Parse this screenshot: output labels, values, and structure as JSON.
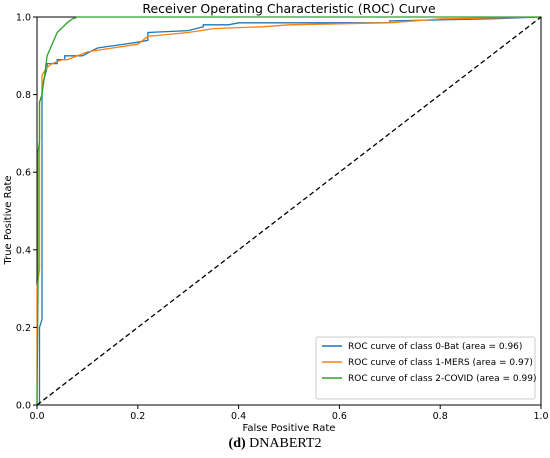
{
  "chart_data": {
    "type": "line",
    "title": "Receiver Operating Characteristic (ROC) Curve",
    "xlabel": "False Positive Rate",
    "ylabel": "True Positive Rate",
    "xlim": [
      0.0,
      1.0
    ],
    "ylim": [
      0.0,
      1.0
    ],
    "xticks": [
      "0.0",
      "0.2",
      "0.4",
      "0.6",
      "0.8",
      "1.0"
    ],
    "yticks": [
      "0.0",
      "0.2",
      "0.4",
      "0.6",
      "0.8",
      "1.0"
    ],
    "grid": false,
    "legend_position": "lower-right",
    "series": [
      {
        "name": "ROC curve of class 0-Bat (area = 0.96)",
        "color": "#1f77b4",
        "x": [
          0.0,
          0.005,
          0.005,
          0.01,
          0.01,
          0.02,
          0.02,
          0.04,
          0.04,
          0.055,
          0.055,
          0.09,
          0.12,
          0.2,
          0.22,
          0.22,
          0.3,
          0.33,
          0.33,
          0.38,
          0.4,
          0.7,
          0.7,
          0.9,
          1.0
        ],
        "y": [
          0.0,
          0.0,
          0.2,
          0.22,
          0.82,
          0.87,
          0.88,
          0.88,
          0.89,
          0.89,
          0.9,
          0.9,
          0.92,
          0.935,
          0.94,
          0.96,
          0.965,
          0.975,
          0.98,
          0.98,
          0.985,
          0.985,
          0.99,
          0.995,
          1.0
        ]
      },
      {
        "name": "ROC curve of class 1-MERS (area = 0.97)",
        "color": "#ff7f0e",
        "x": [
          0.0,
          0.0,
          0.005,
          0.005,
          0.01,
          0.01,
          0.02,
          0.03,
          0.05,
          0.06,
          0.1,
          0.15,
          0.2,
          0.22,
          0.3,
          0.35,
          0.45,
          0.5,
          0.7,
          0.8,
          1.0
        ],
        "y": [
          0.0,
          0.3,
          0.35,
          0.78,
          0.8,
          0.85,
          0.87,
          0.88,
          0.89,
          0.89,
          0.91,
          0.92,
          0.93,
          0.95,
          0.96,
          0.97,
          0.975,
          0.98,
          0.985,
          0.995,
          1.0
        ]
      },
      {
        "name": "ROC curve of class 2-COVID (area = 0.99)",
        "color": "#2ca02c",
        "x": [
          0.0,
          0.002,
          0.002,
          0.005,
          0.005,
          0.01,
          0.015,
          0.02,
          0.03,
          0.04,
          0.06,
          0.07,
          0.08,
          0.09,
          0.1,
          1.0
        ],
        "y": [
          0.0,
          0.3,
          0.65,
          0.68,
          0.78,
          0.8,
          0.85,
          0.9,
          0.93,
          0.96,
          0.985,
          0.995,
          1.0,
          1.0,
          1.0,
          1.0
        ]
      },
      {
        "name": "",
        "color": "#000000",
        "dashed": true,
        "x": [
          0.0,
          1.0
        ],
        "y": [
          0.0,
          1.0
        ]
      }
    ]
  },
  "caption": {
    "label": "(d)",
    "text": "DNABERT2"
  }
}
